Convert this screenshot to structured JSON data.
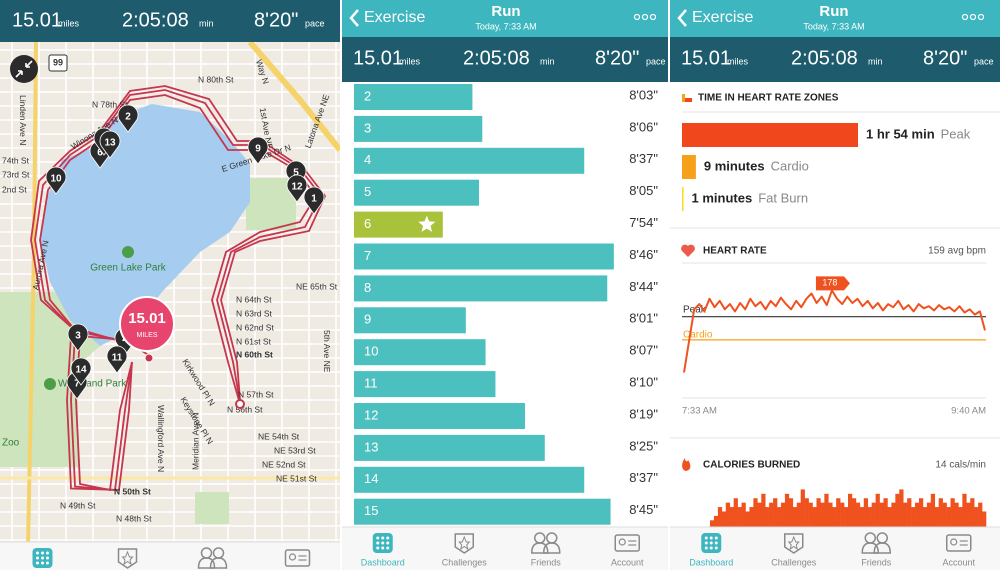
{
  "stats": {
    "distance": "15.01",
    "distance_unit": "miles",
    "duration": "2:05:08",
    "duration_unit": "min",
    "pace": "8'20\"",
    "pace_unit": "pace"
  },
  "header": {
    "back": "Exercise",
    "title": "Run",
    "subtitle": "Today, 7:33 AM"
  },
  "nav": [
    "Dashboard",
    "Challenges",
    "Friends",
    "Account"
  ],
  "map": {
    "street_labels": [
      "N 80th St",
      "N 78th St",
      "Winona Ave N",
      "74th St",
      "73rd St",
      "2nd St",
      "Linden Ave N",
      "Aurora Ave N",
      "1st Ave NE",
      "Latona Ave NE",
      "E Green Lake Dr N",
      "NE 65th St",
      "N 64th St",
      "N 63rd St",
      "N 62nd St",
      "N 61st St",
      "N 60th St",
      "N 57th St",
      "N 56th St",
      "Kirkwood Pl N",
      "Keystone Pl N",
      "Wallingford Ave N",
      "Meridian Ave N",
      "5th Ave NE",
      "NE 54th St",
      "NE 53rd St",
      "NE 52nd St",
      "NE 51st St",
      "N 50th St",
      "N 49th St",
      "N 48th St",
      "Way N"
    ],
    "park_labels": [
      "Green Lake Park",
      "Woodland Park",
      "Zoo"
    ],
    "markers": [
      "1",
      "2",
      "3",
      "4",
      "5",
      "6",
      "7",
      "8",
      "9",
      "10",
      "11",
      "12",
      "13",
      "14"
    ],
    "badge": {
      "value": "15.01",
      "unit": "MILES"
    },
    "sign": "99"
  },
  "splits": {
    "chart_data": {
      "type": "bar",
      "orientation": "horizontal",
      "categories": [
        "2",
        "3",
        "4",
        "5",
        "6",
        "7",
        "8",
        "9",
        "10",
        "11",
        "12",
        "13",
        "14",
        "15"
      ],
      "values": [
        483,
        486,
        517,
        485,
        474,
        526,
        524,
        481,
        487,
        490,
        499,
        505,
        517,
        525
      ],
      "value_labels": [
        "8'03\"",
        "8'06\"",
        "8'37\"",
        "8'05\"",
        "7'54\"",
        "8'46\"",
        "8'44\"",
        "8'01\"",
        "8'07\"",
        "8'10\"",
        "8'19\"",
        "8'25\"",
        "8'37\"",
        "8'45\""
      ],
      "colors": [
        "#4cbfbf",
        "#4cbfbf",
        "#4cbfbf",
        "#4cbfbf",
        "#a8c23b",
        "#4cbfbf",
        "#4cbfbf",
        "#4cbfbf",
        "#4cbfbf",
        "#4cbfbf",
        "#4cbfbf",
        "#4cbfbf",
        "#4cbfbf",
        "#4cbfbf"
      ],
      "xlim": [
        447,
        530
      ]
    }
  },
  "zones": {
    "title": "TIME IN HEART RATE ZONES",
    "chart_data": {
      "type": "bar",
      "orientation": "horizontal",
      "categories": [
        "Peak",
        "Cardio",
        "Fat Burn"
      ],
      "values": [
        114,
        9,
        1
      ],
      "value_labels": [
        "1 hr 54 min",
        "9 minutes",
        "1 minutes"
      ],
      "colors": [
        "#f1471d",
        "#f7a11b",
        "#f5dd2a"
      ],
      "xlim": [
        0,
        114
      ]
    }
  },
  "heart_rate": {
    "title": "HEART RATE",
    "summary": "159 avg bpm",
    "chart_data": {
      "type": "line",
      "color": "#f0521f",
      "values": [
        100,
        130,
        160,
        165,
        158,
        170,
        162,
        168,
        160,
        165,
        158,
        166,
        160,
        170,
        163,
        167,
        160,
        168,
        163,
        171,
        165,
        160,
        168,
        162,
        170,
        175,
        166,
        172,
        164,
        178,
        170,
        165,
        172,
        166,
        170,
        163,
        168,
        161,
        166,
        159,
        165,
        162,
        168,
        160,
        164,
        158,
        165,
        161,
        163,
        159,
        164,
        160,
        162,
        158,
        163,
        157,
        160,
        155,
        158,
        140
      ],
      "max_label": "178",
      "ylim": [
        90,
        185
      ],
      "zones": [
        {
          "name": "Peak",
          "value": 153,
          "color": "#333333"
        },
        {
          "name": "Cardio",
          "value": 131,
          "color": "#f7a11b"
        }
      ],
      "x_labels": [
        "7:33 AM",
        "9:40 AM"
      ]
    }
  },
  "calories": {
    "title": "CALORIES BURNED",
    "summary": "14 cals/min",
    "chart_data": {
      "type": "bar",
      "color": "#f0521f",
      "values": [
        9,
        10,
        12,
        11,
        13,
        12,
        14,
        12,
        13,
        11,
        12,
        14,
        13,
        15,
        12,
        13,
        14,
        12,
        13,
        15,
        14,
        12,
        13,
        16,
        14,
        13,
        12,
        14,
        13,
        15,
        13,
        12,
        14,
        13,
        12,
        15,
        14,
        13,
        12,
        14,
        12,
        13,
        15,
        13,
        14,
        12,
        13,
        15,
        16,
        13,
        14,
        12,
        13,
        14,
        12,
        13,
        15,
        12,
        14,
        13,
        12,
        14,
        13,
        12,
        15,
        13,
        14,
        12,
        13,
        11
      ],
      "ylim": [
        0,
        17
      ]
    }
  }
}
